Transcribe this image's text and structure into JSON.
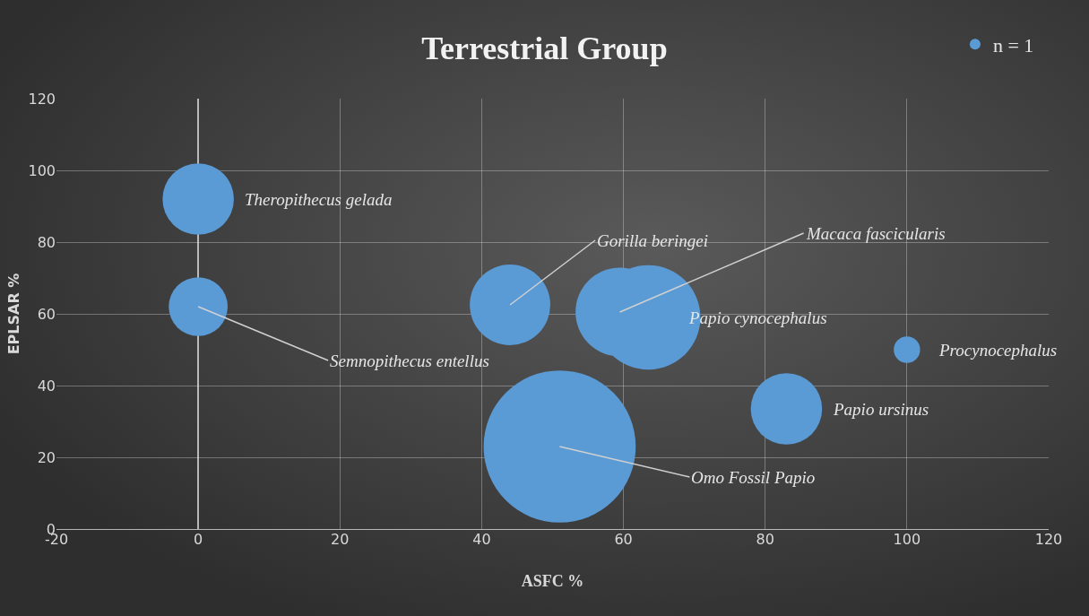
{
  "chart_data": {
    "type": "bubble",
    "title": "Terrestrial Group",
    "xlabel": "ASFC %",
    "ylabel": "EPLSAR %",
    "xlim": [
      -20,
      120
    ],
    "xticks": [
      -20,
      0,
      20,
      40,
      60,
      80,
      100,
      120
    ],
    "ylim": [
      0,
      120
    ],
    "yticks": [
      0,
      20,
      40,
      60,
      80,
      100,
      120
    ],
    "grid": true,
    "legend": "top right",
    "series": [
      {
        "name": "n = 1",
        "color": "#5b9bd5",
        "x": [
          0,
          0,
          44,
          59.5,
          63.5,
          100,
          83,
          51
        ],
        "values": [
          92,
          62,
          62.5,
          60.5,
          59,
          50,
          33.5,
          23
        ],
        "sizes": [
          0.22,
          0.15,
          0.28,
          0.34,
          0.47,
          0.03,
          0.22,
          1
        ]
      }
    ],
    "annotations": [
      {
        "text": "Theropithecus gelada",
        "x": 0,
        "y": 92
      },
      {
        "text": "Semnopithecus entellus",
        "x": 0,
        "y": 62
      },
      {
        "text": "Gorilla beringei",
        "x": 44,
        "y": 62.5
      },
      {
        "text": "Macaca fascicularis",
        "x": 59.5,
        "y": 60.5
      },
      {
        "text": "Papio cynocephalus",
        "x": 63.5,
        "y": 59
      },
      {
        "text": "Procynocephalus",
        "x": 100,
        "y": 50
      },
      {
        "text": "Papio ursinus",
        "x": 83,
        "y": 33.5
      },
      {
        "text": "Omo Fossil Papio",
        "x": 51,
        "y": 23
      }
    ]
  }
}
